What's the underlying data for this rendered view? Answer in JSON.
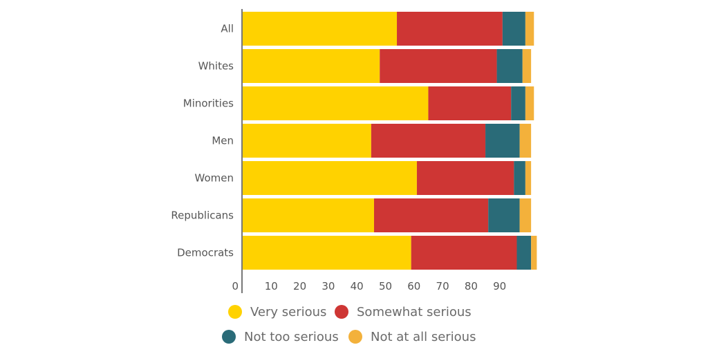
{
  "chart_data": {
    "type": "bar",
    "orientation": "horizontal",
    "stacked": true,
    "title": "",
    "xlabel": "",
    "ylabel": "",
    "xlim": [
      0,
      100
    ],
    "x_ticks": [
      0,
      10,
      20,
      30,
      40,
      50,
      60,
      70,
      80,
      90
    ],
    "grid": false,
    "legend_position": "bottom",
    "categories": [
      "All",
      "Whites",
      "Minorities",
      "Men",
      "Women",
      "Republicans",
      "Democrats"
    ],
    "series": [
      {
        "name": "Very serious",
        "color": "#FFD200",
        "values": [
          54,
          48,
          65,
          45,
          61,
          46,
          59
        ]
      },
      {
        "name": "Somewhat serious",
        "color": "#CE3634",
        "values": [
          37,
          41,
          29,
          40,
          34,
          40,
          37
        ]
      },
      {
        "name": "Not too serious",
        "color": "#2A6B78",
        "values": [
          8,
          9,
          5,
          12,
          4,
          11,
          5
        ]
      },
      {
        "name": "Not at all serious",
        "color": "#F3B13B",
        "values": [
          3,
          3,
          3,
          4,
          2,
          4,
          2
        ]
      }
    ]
  }
}
